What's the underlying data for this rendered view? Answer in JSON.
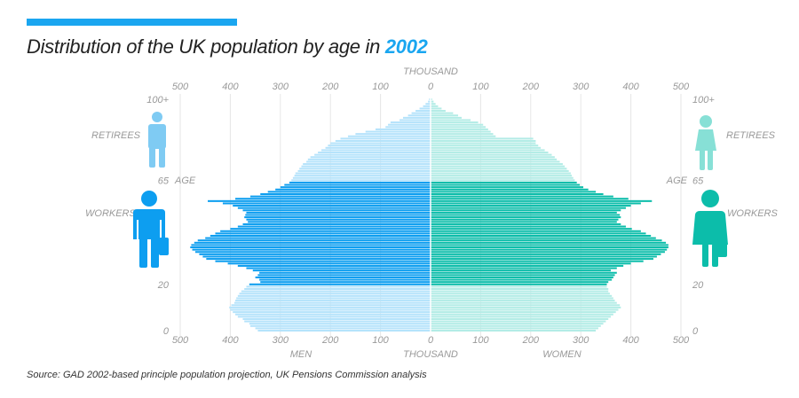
{
  "header": {
    "title_prefix": "Distribution of the UK population by age in ",
    "title_year": "2002"
  },
  "source": "Source: GAD 2002-based principle population projection, UK Pensions Commission analysis",
  "colors": {
    "accent": "#1aa6f0",
    "men_worker": "#0d9ef0",
    "men_other": "#b5e3fb",
    "women_worker": "#0cbdaa",
    "women_other": "#b3ece6",
    "retiree_icon_men": "#7fcbf3",
    "retiree_icon_women": "#87e0d6"
  },
  "labels": {
    "thousand_top": "THOUSAND",
    "thousand_bottom": "THOUSAND",
    "men": "MEN",
    "women": "WOMEN",
    "age": "AGE",
    "retirees": "RETIREES",
    "workers": "WORKERS"
  },
  "icons": [
    "man-retiree-icon",
    "man-worker-icon",
    "woman-retiree-icon",
    "woman-worker-icon"
  ],
  "chart_data": {
    "type": "bar",
    "orientation": "horizontal-pyramid",
    "x_ticks_left": [
      "500",
      "400",
      "300",
      "200",
      "100",
      "0"
    ],
    "x_ticks_right": [
      "0",
      "100",
      "200",
      "300",
      "400",
      "500"
    ],
    "y_ticks": [
      "0",
      "20",
      "65",
      "100+"
    ],
    "xlim": [
      0,
      500
    ],
    "ages": [
      0,
      1,
      2,
      3,
      4,
      5,
      6,
      7,
      8,
      9,
      10,
      11,
      12,
      13,
      14,
      15,
      16,
      17,
      18,
      19,
      20,
      21,
      22,
      23,
      24,
      25,
      26,
      27,
      28,
      29,
      30,
      31,
      32,
      33,
      34,
      35,
      36,
      37,
      38,
      39,
      40,
      41,
      42,
      43,
      44,
      45,
      46,
      47,
      48,
      49,
      50,
      51,
      52,
      53,
      54,
      55,
      56,
      57,
      58,
      59,
      60,
      61,
      62,
      63,
      64,
      65,
      66,
      67,
      68,
      69,
      70,
      71,
      72,
      73,
      74,
      75,
      76,
      77,
      78,
      79,
      80,
      81,
      82,
      83,
      84,
      85,
      86,
      87,
      88,
      89,
      90,
      91,
      92,
      93,
      94,
      95,
      96,
      97,
      98,
      99,
      100
    ],
    "working_age_range": [
      20,
      64
    ],
    "series": [
      {
        "name": "MEN",
        "values": [
          345,
          350,
          360,
          362,
          372,
          375,
          385,
          390,
          395,
          400,
          402,
          398,
          392,
          390,
          388,
          385,
          382,
          378,
          372,
          368,
          362,
          340,
          342,
          350,
          345,
          342,
          355,
          368,
          385,
          405,
          430,
          448,
          455,
          462,
          470,
          476,
          480,
          478,
          472,
          465,
          450,
          440,
          430,
          420,
          400,
          385,
          375,
          365,
          368,
          372,
          370,
          368,
          375,
          385,
          395,
          415,
          445,
          390,
          360,
          340,
          325,
          310,
          300,
          292,
          282,
          278,
          275,
          272,
          270,
          265,
          262,
          258,
          255,
          248,
          245,
          240,
          232,
          225,
          218,
          210,
          205,
          200,
          190,
          180,
          165,
          150,
          130,
          110,
          90,
          85,
          80,
          62,
          55,
          45,
          38,
          30,
          22,
          15,
          10,
          5,
          3
        ]
      },
      {
        "name": "WOMEN",
        "values": [
          330,
          335,
          340,
          345,
          350,
          355,
          360,
          365,
          370,
          375,
          380,
          378,
          372,
          368,
          365,
          362,
          358,
          355,
          355,
          352,
          352,
          355,
          362,
          365,
          368,
          372,
          360,
          372,
          385,
          400,
          425,
          445,
          452,
          460,
          468,
          472,
          475,
          475,
          470,
          462,
          450,
          440,
          430,
          420,
          402,
          390,
          380,
          372,
          375,
          380,
          378,
          372,
          380,
          390,
          400,
          420,
          442,
          395,
          365,
          345,
          330,
          315,
          305,
          298,
          292,
          288,
          285,
          282,
          280,
          276,
          272,
          268,
          264,
          258,
          252,
          248,
          242,
          235,
          228,
          220,
          215,
          210,
          210,
          205,
          130,
          125,
          120,
          115,
          110,
          105,
          95,
          80,
          62,
          55,
          45,
          30,
          22,
          15,
          10,
          6,
          3
        ]
      }
    ]
  }
}
